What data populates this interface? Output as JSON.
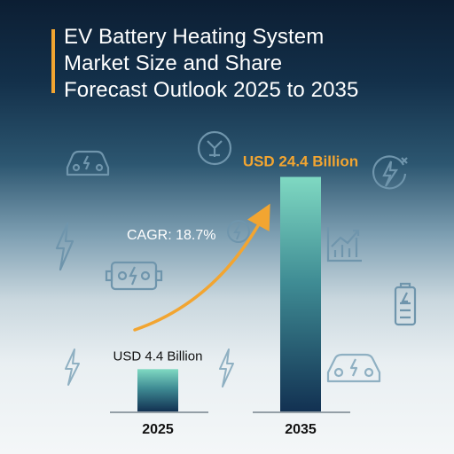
{
  "title_lines": [
    "EV Battery Heating System",
    "Market Size and Share",
    "Forecast Outlook 2025 to 2035"
  ],
  "colors": {
    "accent": "#f2a531",
    "bar_top": "#7fd9c2",
    "bar_bottom": "#123152",
    "icon": "#8fb3c8"
  },
  "chart_data": {
    "type": "bar",
    "categories": [
      "2025",
      "2035"
    ],
    "values": [
      4.4,
      24.4
    ],
    "data_labels": [
      "USD 4.4 Billion",
      "USD 24.4 Billion"
    ],
    "annotation": "CAGR: 18.7%",
    "title": "",
    "xlabel": "",
    "ylabel": "",
    "ylim": [
      0,
      25
    ],
    "grid": false
  },
  "icons": [
    "car-icon",
    "plug-icon",
    "lightning-icon",
    "battery-icon",
    "growth-chart-icon",
    "bolt-circle-icon"
  ]
}
